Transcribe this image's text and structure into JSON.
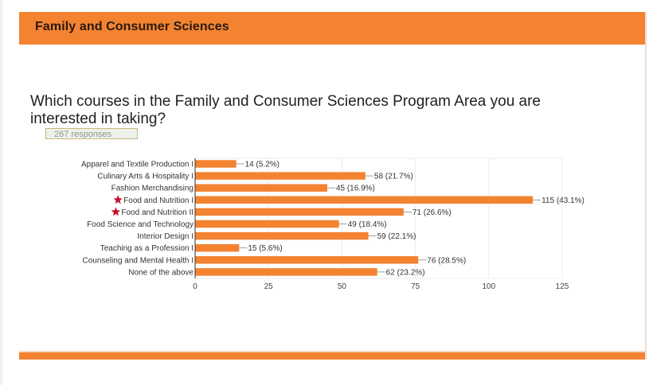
{
  "header": {
    "title": "Family and Consumer Sciences"
  },
  "question": {
    "text": "Which courses in the Family and Consumer Sciences Program Area you are interested in taking?",
    "responses_label": "267 responses"
  },
  "colors": {
    "accent": "#f38331",
    "bar": "#f38331",
    "star": "#c8102e"
  },
  "chart_data": {
    "type": "bar",
    "orientation": "horizontal",
    "title": "Which courses in the Family and Consumer Sciences Program Area you are interested in taking?",
    "xlabel": "",
    "ylabel": "",
    "xlim": [
      0,
      125
    ],
    "xticks": [
      0,
      25,
      50,
      75,
      100,
      125
    ],
    "grid": true,
    "categories": [
      "Apparel and Textile Production I",
      "Culinary Arts & Hospitality I",
      "Fashion Merchandising",
      "Food and Nutrition I",
      "Food and Nutrition II",
      "Food Science and Technology",
      "Interior Design I",
      "Teaching as a Profession I",
      "Counseling and Mental Health I",
      "None of the above"
    ],
    "starred": [
      false,
      false,
      false,
      true,
      true,
      false,
      false,
      false,
      false,
      false
    ],
    "values": [
      14,
      58,
      45,
      115,
      71,
      49,
      59,
      15,
      76,
      62
    ],
    "data_labels": [
      "14 (5.2%)",
      "58 (21.7%)",
      "45 (16.9%)",
      "115 (43.1%)",
      "71 (26.6%)",
      "49 (18.4%)",
      "59 (22.1%)",
      "15 (5.6%)",
      "76 (28.5%)",
      "62 (23.2%)"
    ]
  }
}
